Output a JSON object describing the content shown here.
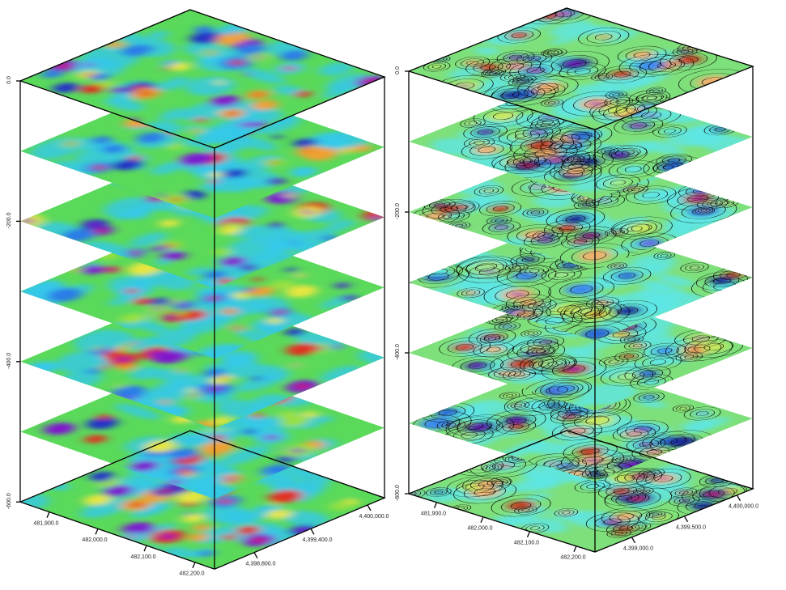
{
  "left_panel": {
    "depth_labels": [
      "0.0",
      "-200.0",
      "-400.0",
      "-600.0"
    ],
    "easting_labels": [
      "481,900.0",
      "482,000.0",
      "482,100.0",
      "482,200.0"
    ],
    "northing_labels": [
      "4,398,800.0",
      "4,399,400.0",
      "4,400,000.0"
    ]
  },
  "right_panel": {
    "depth_labels": [
      "0.0",
      "-200.0",
      "-400.0",
      "-600.0"
    ],
    "easting_labels": [
      "481,900.0",
      "482,000.0",
      "482,100.0",
      "482,200.0"
    ],
    "northing_labels": [
      "4,399,000.0",
      "4,399,500.0",
      "4,400,000.0"
    ]
  }
}
